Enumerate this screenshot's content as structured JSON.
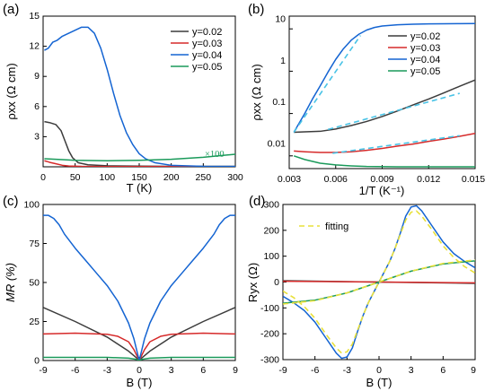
{
  "colors": {
    "y002": "#3c3c3c",
    "y003": "#d62a2a",
    "y004": "#1464d2",
    "y005": "#1a9a5a",
    "fit_b": "#49c3e6",
    "fit_d": "#e8e03a"
  },
  "chart_data": [
    {
      "panel": "(a)",
      "type": "line",
      "xlabel": "T (K)",
      "ylabel": "ρxx (Ω cm)",
      "xlim": [
        0,
        300
      ],
      "ylim": [
        0,
        15
      ],
      "xticks": [
        "0",
        "50",
        "100",
        "150",
        "200",
        "250",
        "300"
      ],
      "yticks": [
        "3",
        "6",
        "9",
        "12",
        "15"
      ],
      "annotation": "×100",
      "legend": {
        "position": "top-right",
        "entries": [
          "y=0.02",
          "y=0.03",
          "y=0.04",
          "y=0.05"
        ]
      },
      "series": [
        {
          "name": "y=0.02",
          "x": [
            2,
            10,
            20,
            28,
            34,
            40,
            46,
            55,
            70,
            100,
            150,
            200,
            250,
            300
          ],
          "y": [
            4.5,
            4.4,
            4.2,
            3.6,
            2.6,
            1.6,
            0.9,
            0.4,
            0.2,
            0.1,
            0.07,
            0.05,
            0.05,
            0.05
          ]
        },
        {
          "name": "y=0.03",
          "x": [
            2,
            5,
            10,
            20,
            30,
            40,
            60,
            100,
            150,
            200,
            300
          ],
          "y": [
            0.6,
            0.55,
            0.45,
            0.3,
            0.15,
            0.08,
            0.04,
            0.02,
            0.02,
            0.02,
            0.02
          ]
        },
        {
          "name": "y=0.04",
          "x": [
            2,
            8,
            15,
            22,
            30,
            40,
            50,
            60,
            70,
            80,
            90,
            100,
            110,
            120,
            130,
            140,
            150,
            160,
            175,
            200,
            250,
            300
          ],
          "y": [
            11.6,
            11.8,
            12.4,
            12.6,
            13.0,
            13.3,
            13.6,
            13.9,
            13.9,
            13.3,
            11.8,
            9.7,
            7.3,
            5.1,
            3.4,
            2.2,
            1.3,
            0.8,
            0.4,
            0.15,
            0.05,
            0.03
          ]
        },
        {
          "name": "y=0.05",
          "x": [
            2,
            20,
            50,
            100,
            150,
            200,
            250,
            300
          ],
          "y": [
            0.8,
            0.75,
            0.65,
            0.6,
            0.65,
            0.75,
            0.95,
            1.25
          ]
        }
      ]
    },
    {
      "panel": "(b)",
      "type": "line",
      "xlabel": "1/T (K⁻¹)",
      "ylabel": "ρxx (Ω cm)",
      "xlim": [
        0.003,
        0.015
      ],
      "ylim": [
        0.005,
        20
      ],
      "yscale": "log",
      "xticks": [
        "0.003",
        "0.006",
        "0.009",
        "0.012",
        "0.015"
      ],
      "yticks": [
        "0.01",
        "0.1",
        "1",
        "10"
      ],
      "legend": {
        "position": "top-right",
        "entries": [
          "y=0.02",
          "y=0.03",
          "y=0.04",
          "y=0.05"
        ]
      },
      "series": [
        {
          "name": "y=0.02",
          "x": [
            0.0033,
            0.004,
            0.005,
            0.006,
            0.007,
            0.008,
            0.009,
            0.01,
            0.011,
            0.012,
            0.013,
            0.014,
            0.015
          ],
          "y": [
            0.036,
            0.037,
            0.038,
            0.043,
            0.052,
            0.065,
            0.085,
            0.115,
            0.16,
            0.22,
            0.31,
            0.44,
            0.62
          ]
        },
        {
          "name": "y=0.03",
          "x": [
            0.0033,
            0.004,
            0.005,
            0.006,
            0.007,
            0.008,
            0.009,
            0.01,
            0.011,
            0.012,
            0.013,
            0.014,
            0.015
          ],
          "y": [
            0.013,
            0.0125,
            0.012,
            0.012,
            0.0125,
            0.0135,
            0.015,
            0.017,
            0.019,
            0.022,
            0.025,
            0.029,
            0.034
          ]
        },
        {
          "name": "y=0.04",
          "x": [
            0.0033,
            0.004,
            0.0045,
            0.005,
            0.0055,
            0.006,
            0.0065,
            0.007,
            0.0075,
            0.008,
            0.0085,
            0.009,
            0.01,
            0.011,
            0.012,
            0.013,
            0.014,
            0.015
          ],
          "y": [
            0.036,
            0.1,
            0.22,
            0.45,
            0.95,
            1.9,
            3.4,
            5.4,
            7.5,
            9.4,
            10.8,
            11.7,
            12.5,
            12.9,
            13.1,
            13.2,
            13.3,
            13.4
          ]
        },
        {
          "name": "y=0.05",
          "x": [
            0.0033,
            0.004,
            0.005,
            0.006,
            0.007,
            0.008,
            0.01,
            0.012,
            0.015
          ],
          "y": [
            0.01,
            0.0082,
            0.0067,
            0.0061,
            0.0058,
            0.0056,
            0.0055,
            0.0055,
            0.0055
          ]
        }
      ],
      "fits": [
        {
          "x": [
            0.0033,
            0.0076
          ],
          "y": [
            0.036,
            7.0
          ]
        },
        {
          "x": [
            0.0055,
            0.014
          ],
          "y": [
            0.042,
            0.3
          ]
        },
        {
          "x": [
            0.0058,
            0.014
          ],
          "y": [
            0.0115,
            0.03
          ]
        }
      ]
    },
    {
      "panel": "(c)",
      "type": "line",
      "xlabel": "B (T)",
      "ylabel": "MR (%)",
      "xlim": [
        -9,
        9
      ],
      "ylim": [
        0,
        100
      ],
      "xticks": [
        "-9",
        "-6",
        "-3",
        "0",
        "3",
        "6",
        "9"
      ],
      "yticks": [
        "0",
        "25",
        "50",
        "75",
        "100"
      ],
      "series": [
        {
          "name": "y=0.02",
          "x": [
            -9,
            -6,
            -3,
            -1,
            -0.3,
            0,
            0.3,
            1,
            3,
            6,
            9
          ],
          "y": [
            34,
            25,
            15,
            6,
            2,
            0,
            2,
            6,
            15,
            25,
            34
          ]
        },
        {
          "name": "y=0.03",
          "x": [
            -9,
            -6,
            -3,
            -2,
            -1,
            -0.5,
            0,
            0.5,
            1,
            2,
            3,
            6,
            9
          ],
          "y": [
            17,
            17.5,
            16.8,
            15.5,
            12,
            7,
            0,
            7,
            12,
            15.5,
            16.8,
            17.5,
            17
          ]
        },
        {
          "name": "y=0.04",
          "x": [
            -9,
            -8.5,
            -8,
            -7.5,
            -7,
            -6,
            -5,
            -4,
            -3,
            -2,
            -1,
            -0.5,
            0,
            0.5,
            1,
            2,
            3,
            4,
            5,
            6,
            7,
            7.5,
            8,
            8.5,
            9
          ],
          "y": [
            93,
            93,
            91,
            87,
            81,
            72,
            64,
            56,
            48,
            38,
            24,
            14,
            0,
            14,
            24,
            38,
            48,
            56,
            64,
            72,
            81,
            87,
            91,
            93,
            93
          ]
        },
        {
          "name": "y=0.05",
          "x": [
            -9,
            -3,
            -1,
            -0.3,
            0,
            0.3,
            1,
            3,
            9
          ],
          "y": [
            2,
            2,
            1.5,
            0.8,
            0,
            0.8,
            1.5,
            2,
            2
          ]
        }
      ]
    },
    {
      "panel": "(d)",
      "type": "line",
      "xlabel": "B (T)",
      "ylabel": "Ryx (Ω)",
      "xlim": [
        -9,
        9
      ],
      "ylim": [
        -300,
        300
      ],
      "xticks": [
        "-9",
        "-6",
        "-3",
        "0",
        "3",
        "6",
        "9"
      ],
      "yticks": [
        "-300",
        "-200",
        "-100",
        "0",
        "100",
        "200",
        "300"
      ],
      "legend": {
        "position": "top-left",
        "entries": [
          "fitting"
        ]
      },
      "series": [
        {
          "name": "y=0.02",
          "x": [
            -9,
            9
          ],
          "y": [
            5,
            -5
          ]
        },
        {
          "name": "y=0.03",
          "x": [
            -9,
            9
          ],
          "y": [
            3,
            -3
          ]
        },
        {
          "name": "y=0.04",
          "x": [
            -9,
            -8,
            -7,
            -6,
            -5,
            -4,
            -3.5,
            -3,
            -2.5,
            -2,
            -1.5,
            -1,
            -0.5,
            0,
            0.5,
            1,
            1.5,
            2,
            2.5,
            3,
            3.5,
            4,
            5,
            6,
            7,
            8,
            9
          ],
          "y": [
            -55,
            -80,
            -110,
            -155,
            -215,
            -275,
            -295,
            -290,
            -255,
            -190,
            -130,
            -80,
            -40,
            0,
            40,
            80,
            130,
            190,
            255,
            290,
            295,
            275,
            215,
            155,
            110,
            80,
            55
          ]
        },
        {
          "name": "y=0.05",
          "x": [
            -9,
            -6,
            -3,
            0,
            3,
            6,
            9
          ],
          "y": [
            -82,
            -70,
            -42,
            0,
            42,
            70,
            82
          ]
        }
      ],
      "fits": [
        {
          "x": [
            -9,
            -8,
            -7,
            -6,
            -5,
            -4,
            -3.5,
            -3,
            -2.5,
            -2,
            -1.5,
            -1,
            -0.5,
            0,
            0.5,
            1,
            1.5,
            2,
            2.5,
            3,
            3.5,
            4,
            5,
            6,
            7,
            8,
            9
          ],
          "y": [
            -35,
            -60,
            -95,
            -140,
            -200,
            -255,
            -275,
            -270,
            -240,
            -185,
            -130,
            -80,
            -40,
            0,
            40,
            80,
            130,
            185,
            240,
            270,
            275,
            255,
            200,
            140,
            95,
            60,
            35
          ]
        },
        {
          "x": [
            -9,
            -6,
            -3,
            0,
            3,
            6,
            9
          ],
          "y": [
            -85,
            -72,
            -42,
            0,
            42,
            72,
            85
          ]
        }
      ]
    }
  ]
}
